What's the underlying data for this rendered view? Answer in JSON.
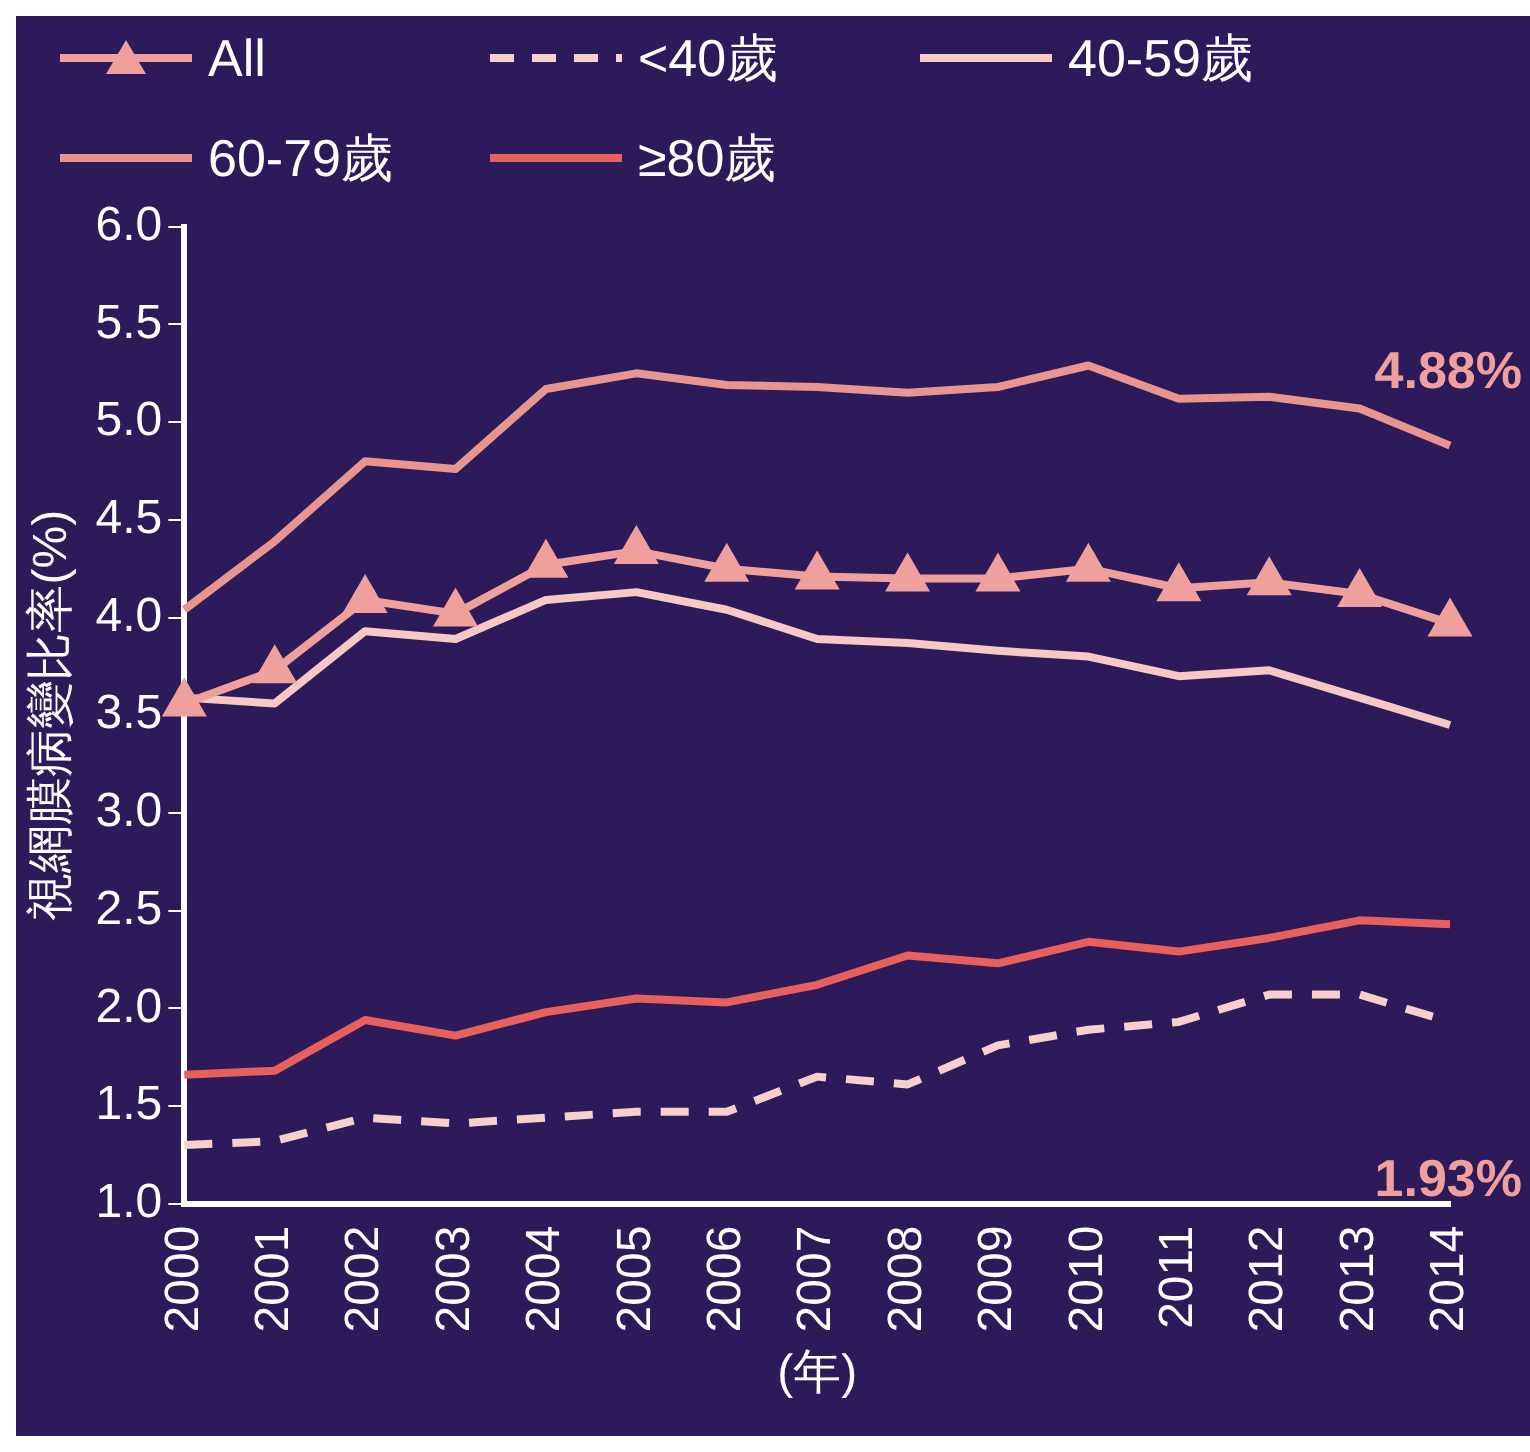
{
  "chart_data": {
    "type": "line",
    "ylabel": "視網膜病變比率(%)",
    "xlabel": "(年)",
    "categories": [
      "2000",
      "2001",
      "2002",
      "2003",
      "2004",
      "2005",
      "2006",
      "2007",
      "2008",
      "2009",
      "2010",
      "2011",
      "2012",
      "2013",
      "2014"
    ],
    "series": [
      {
        "name": "All",
        "color": "#f0a09c",
        "marker": "triangle",
        "line_style": "solid",
        "values": [
          3.56,
          3.73,
          4.09,
          4.02,
          4.27,
          4.34,
          4.25,
          4.21,
          4.2,
          4.2,
          4.25,
          4.15,
          4.18,
          4.12,
          3.97
        ]
      },
      {
        "name": "<40歲",
        "color": "#f7d0cc",
        "marker": "none",
        "line_style": "dashed",
        "values": [
          1.3,
          1.32,
          1.44,
          1.41,
          1.44,
          1.47,
          1.47,
          1.65,
          1.61,
          1.81,
          1.89,
          1.93,
          2.07,
          2.07,
          1.93
        ]
      },
      {
        "name": "40-59歲",
        "color": "#f8c8c4",
        "marker": "none",
        "line_style": "solid",
        "values": [
          3.59,
          3.56,
          3.93,
          3.89,
          4.09,
          4.13,
          4.04,
          3.89,
          3.87,
          3.83,
          3.8,
          3.7,
          3.73,
          3.59,
          3.45
        ]
      },
      {
        "name": "60-79歲",
        "color": "#e8948f",
        "marker": "none",
        "line_style": "solid",
        "values": [
          4.04,
          4.39,
          4.8,
          4.76,
          5.17,
          5.25,
          5.19,
          5.18,
          5.15,
          5.18,
          5.29,
          5.12,
          5.13,
          5.07,
          4.88
        ]
      },
      {
        "name": "≥80歲",
        "color": "#e8605c",
        "marker": "none",
        "line_style": "solid",
        "values": [
          1.66,
          1.68,
          1.94,
          1.86,
          1.98,
          2.05,
          2.03,
          2.12,
          2.27,
          2.23,
          2.34,
          2.29,
          2.36,
          2.45,
          2.43
        ]
      }
    ],
    "ylim": [
      1,
      6
    ],
    "yticks": [
      {
        "value": 1,
        "label": "1.0"
      },
      {
        "value": 1.5,
        "label": "1.5"
      },
      {
        "value": 2,
        "label": "2.0"
      },
      {
        "value": 2.5,
        "label": "2.5"
      },
      {
        "value": 3,
        "label": "3.0"
      },
      {
        "value": 3.5,
        "label": "3.5"
      },
      {
        "value": 4,
        "label": "4.0"
      },
      {
        "value": 4.5,
        "label": "4.5"
      },
      {
        "value": 5,
        "label": "5.0"
      },
      {
        "value": 5.5,
        "label": "5.5"
      },
      {
        "value": 6,
        "label": "6.0"
      }
    ],
    "annotations": [
      {
        "text": "4.88%",
        "x": "2014",
        "y": 4.88
      },
      {
        "text": "1.93%",
        "x": "2014",
        "y": 1.93
      }
    ],
    "grid": false,
    "legend": "top"
  }
}
